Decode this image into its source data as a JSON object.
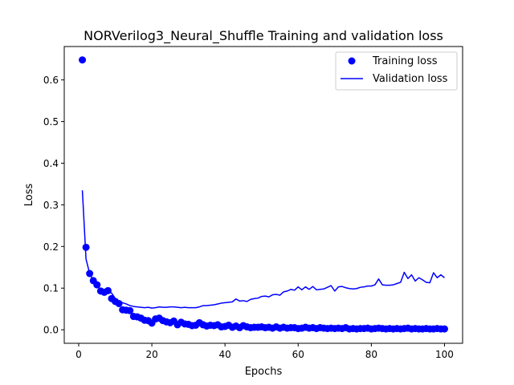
{
  "chart_data": {
    "type": "line",
    "title": "NORVerilog3_Neural_Shuffle Training and validation loss",
    "xlabel": "Epochs",
    "ylabel": "Loss",
    "xlim": [
      -3.95,
      104.95
    ],
    "ylim": [
      -0.03246,
      0.68022
    ],
    "grid": false,
    "legend_position": "top-right",
    "x_ticks": [
      0,
      20,
      40,
      60,
      80,
      100
    ],
    "x_tick_labels": [
      "0",
      "20",
      "40",
      "60",
      "80",
      "100"
    ],
    "y_ticks": [
      0.0,
      0.1,
      0.2,
      0.3,
      0.4,
      0.5,
      0.6
    ],
    "y_tick_labels": [
      "0.0",
      "0.1",
      "0.2",
      "0.3",
      "0.4",
      "0.5",
      "0.6"
    ],
    "series": [
      {
        "name": "Training loss",
        "style": "markers",
        "color": "#0000ff",
        "x": [
          1,
          2,
          3,
          4,
          5,
          6,
          7,
          8,
          9,
          10,
          11,
          12,
          13,
          14,
          15,
          16,
          17,
          18,
          19,
          20,
          21,
          22,
          23,
          24,
          25,
          26,
          27,
          28,
          29,
          30,
          31,
          32,
          33,
          34,
          35,
          36,
          37,
          38,
          39,
          40,
          41,
          42,
          43,
          44,
          45,
          46,
          47,
          48,
          49,
          50,
          51,
          52,
          53,
          54,
          55,
          56,
          57,
          58,
          59,
          60,
          61,
          62,
          63,
          64,
          65,
          66,
          67,
          68,
          69,
          70,
          71,
          72,
          73,
          74,
          75,
          76,
          77,
          78,
          79,
          80,
          81,
          82,
          83,
          84,
          85,
          86,
          87,
          88,
          89,
          90,
          91,
          92,
          93,
          94,
          95,
          96,
          97,
          98,
          99,
          100
        ],
        "values": [
          0.648,
          0.198,
          0.135,
          0.118,
          0.108,
          0.093,
          0.09,
          0.094,
          0.075,
          0.068,
          0.063,
          0.048,
          0.047,
          0.046,
          0.032,
          0.031,
          0.028,
          0.023,
          0.022,
          0.016,
          0.026,
          0.028,
          0.022,
          0.019,
          0.017,
          0.021,
          0.012,
          0.018,
          0.014,
          0.013,
          0.01,
          0.011,
          0.017,
          0.012,
          0.009,
          0.011,
          0.01,
          0.012,
          0.007,
          0.008,
          0.011,
          0.006,
          0.009,
          0.005,
          0.01,
          0.007,
          0.005,
          0.006,
          0.006,
          0.007,
          0.005,
          0.006,
          0.004,
          0.007,
          0.004,
          0.006,
          0.004,
          0.005,
          0.005,
          0.003,
          0.004,
          0.006,
          0.004,
          0.005,
          0.003,
          0.005,
          0.004,
          0.003,
          0.004,
          0.003,
          0.004,
          0.003,
          0.005,
          0.002,
          0.003,
          0.002,
          0.003,
          0.003,
          0.004,
          0.002,
          0.003,
          0.004,
          0.003,
          0.002,
          0.003,
          0.002,
          0.003,
          0.002,
          0.003,
          0.004,
          0.002,
          0.003,
          0.002,
          0.002,
          0.003,
          0.002,
          0.002,
          0.003,
          0.002,
          0.002
        ]
      },
      {
        "name": "Validation loss",
        "style": "line",
        "color": "#0000ff",
        "x": [
          1,
          2,
          3,
          4,
          5,
          6,
          7,
          8,
          9,
          10,
          11,
          12,
          13,
          14,
          15,
          16,
          17,
          18,
          19,
          20,
          21,
          22,
          23,
          24,
          25,
          26,
          27,
          28,
          29,
          30,
          31,
          32,
          33,
          34,
          35,
          36,
          37,
          38,
          39,
          40,
          41,
          42,
          43,
          44,
          45,
          46,
          47,
          48,
          49,
          50,
          51,
          52,
          53,
          54,
          55,
          56,
          57,
          58,
          59,
          60,
          61,
          62,
          63,
          64,
          65,
          66,
          67,
          68,
          69,
          70,
          71,
          72,
          73,
          74,
          75,
          76,
          77,
          78,
          79,
          80,
          81,
          82,
          83,
          84,
          85,
          86,
          87,
          88,
          89,
          90,
          91,
          92,
          93,
          94,
          95,
          96,
          97,
          98,
          99,
          100
        ],
        "values": [
          0.335,
          0.17,
          0.135,
          0.118,
          0.105,
          0.098,
          0.095,
          0.091,
          0.088,
          0.075,
          0.068,
          0.065,
          0.062,
          0.058,
          0.056,
          0.055,
          0.054,
          0.053,
          0.054,
          0.052,
          0.053,
          0.055,
          0.054,
          0.054,
          0.055,
          0.055,
          0.054,
          0.053,
          0.054,
          0.053,
          0.053,
          0.053,
          0.055,
          0.058,
          0.058,
          0.059,
          0.06,
          0.062,
          0.064,
          0.065,
          0.066,
          0.067,
          0.074,
          0.069,
          0.07,
          0.068,
          0.073,
          0.075,
          0.076,
          0.08,
          0.081,
          0.079,
          0.084,
          0.085,
          0.083,
          0.091,
          0.093,
          0.097,
          0.095,
          0.103,
          0.096,
          0.103,
          0.097,
          0.104,
          0.096,
          0.097,
          0.098,
          0.102,
          0.106,
          0.093,
          0.103,
          0.104,
          0.101,
          0.099,
          0.098,
          0.099,
          0.102,
          0.103,
          0.105,
          0.105,
          0.108,
          0.122,
          0.108,
          0.107,
          0.107,
          0.108,
          0.111,
          0.114,
          0.138,
          0.123,
          0.132,
          0.117,
          0.125,
          0.12,
          0.114,
          0.113,
          0.137,
          0.125,
          0.132,
          0.125
        ]
      }
    ]
  }
}
